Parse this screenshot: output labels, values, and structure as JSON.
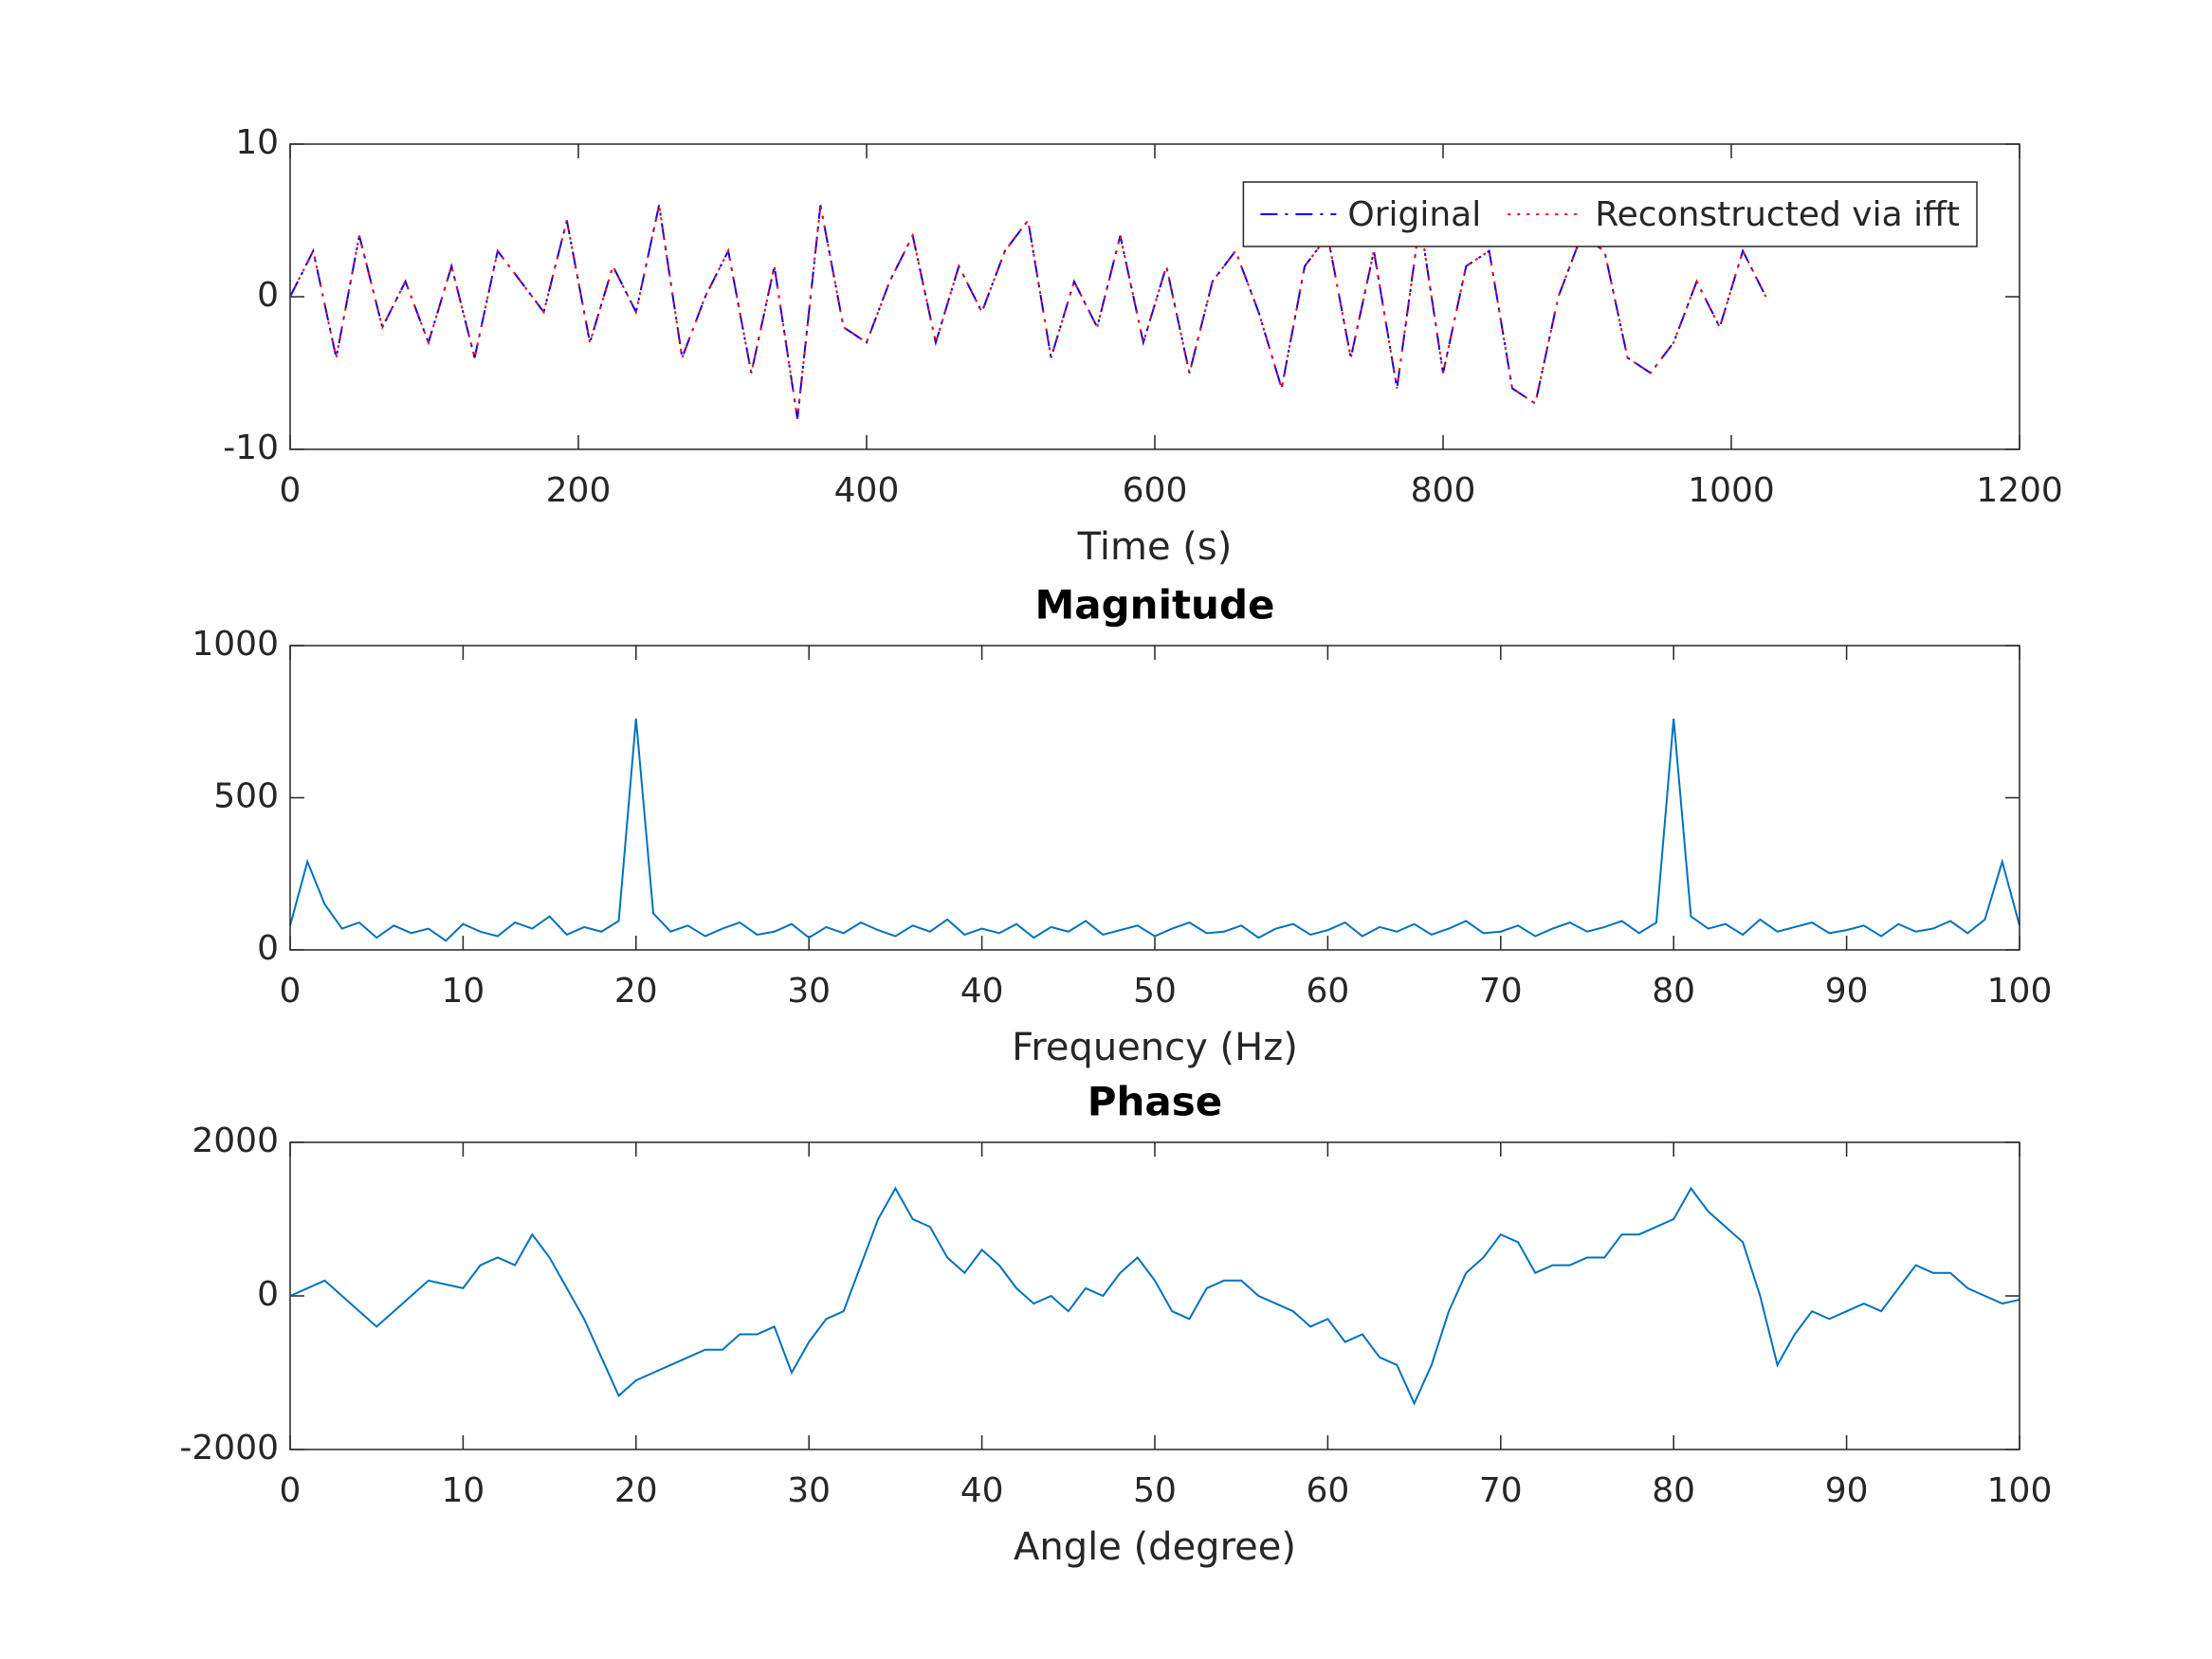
{
  "chart_data": [
    {
      "type": "line",
      "xlabel": "Time (s)",
      "xlim": [
        0,
        1200
      ],
      "ylim": [
        -10,
        10
      ],
      "xticks": [
        0,
        200,
        400,
        600,
        800,
        1000,
        1200
      ],
      "yticks": [
        -10,
        0,
        10
      ],
      "legend": "northeast",
      "x": [
        0,
        16,
        32,
        48,
        64,
        80,
        96,
        112,
        128,
        144,
        160,
        176,
        192,
        208,
        224,
        240,
        256,
        272,
        288,
        304,
        320,
        336,
        352,
        368,
        384,
        400,
        416,
        432,
        448,
        464,
        480,
        496,
        512,
        528,
        544,
        560,
        576,
        592,
        608,
        624,
        640,
        656,
        672,
        688,
        704,
        720,
        736,
        752,
        768,
        784,
        800,
        816,
        832,
        848,
        864,
        880,
        896,
        912,
        928,
        944,
        960,
        976,
        992,
        1008,
        1024
      ],
      "series": [
        {
          "name": "Original",
          "color": "#0000ff",
          "linestyle": "dashdot",
          "values": [
            0,
            3,
            -4,
            4,
            -2,
            1,
            -3,
            2,
            -4,
            3,
            1,
            -1,
            5,
            -3,
            2,
            -1,
            6,
            -4,
            0,
            3,
            -5,
            2,
            -8,
            6,
            -2,
            -3,
            1,
            4,
            -3,
            2,
            -1,
            3,
            5,
            -4,
            1,
            -2,
            4,
            -3,
            2,
            -5,
            1,
            3,
            -1,
            -6,
            2,
            4,
            -4,
            3,
            -6,
            5,
            -5,
            2,
            3,
            -6,
            -7,
            0,
            4,
            3,
            -4,
            -5,
            -3,
            1,
            -2,
            3,
            0
          ]
        },
        {
          "name": "Reconstructed via ifft",
          "color": "#ff0000",
          "linestyle": "dotted",
          "values": [
            0,
            3,
            -4,
            4,
            -2,
            1,
            -3,
            2,
            -4,
            3,
            1,
            -1,
            5,
            -3,
            2,
            -1,
            6,
            -4,
            0,
            3,
            -5,
            2,
            -8,
            6,
            -2,
            -3,
            1,
            4,
            -3,
            2,
            -1,
            3,
            5,
            -4,
            1,
            -2,
            4,
            -3,
            2,
            -5,
            1,
            3,
            -1,
            -6,
            2,
            4,
            -4,
            3,
            -6,
            5,
            -5,
            2,
            3,
            -6,
            -7,
            0,
            4,
            3,
            -4,
            -5,
            -3,
            1,
            -2,
            3,
            0
          ]
        }
      ]
    },
    {
      "type": "line",
      "title": "Magnitude",
      "xlabel": "Frequency (Hz)",
      "xlim": [
        0,
        100
      ],
      "ylim": [
        0,
        1000
      ],
      "xticks": [
        0,
        10,
        20,
        30,
        40,
        50,
        60,
        70,
        80,
        90,
        100
      ],
      "yticks": [
        0,
        500,
        1000
      ],
      "x": [
        0,
        1,
        2,
        3,
        4,
        5,
        6,
        7,
        8,
        9,
        10,
        11,
        12,
        13,
        14,
        15,
        16,
        17,
        18,
        19,
        20,
        21,
        22,
        23,
        24,
        25,
        26,
        27,
        28,
        29,
        30,
        31,
        32,
        33,
        34,
        35,
        36,
        37,
        38,
        39,
        40,
        41,
        42,
        43,
        44,
        45,
        46,
        47,
        48,
        49,
        50,
        51,
        52,
        53,
        54,
        55,
        56,
        57,
        58,
        59,
        60,
        61,
        62,
        63,
        64,
        65,
        66,
        67,
        68,
        69,
        70,
        71,
        72,
        73,
        74,
        75,
        76,
        77,
        78,
        79,
        80,
        81,
        82,
        83,
        84,
        85,
        86,
        87,
        88,
        89,
        90,
        91,
        92,
        93,
        94,
        95,
        96,
        97,
        98,
        99,
        100
      ],
      "series": [
        {
          "name": "Magnitude",
          "color": "#0072bd",
          "values": [
            80,
            290,
            150,
            70,
            90,
            40,
            80,
            55,
            70,
            30,
            85,
            60,
            45,
            90,
            70,
            110,
            50,
            75,
            60,
            95,
            760,
            120,
            60,
            80,
            45,
            70,
            90,
            50,
            60,
            85,
            40,
            75,
            55,
            90,
            65,
            45,
            80,
            60,
            100,
            50,
            70,
            55,
            85,
            40,
            75,
            60,
            95,
            50,
            65,
            80,
            45,
            70,
            90,
            55,
            60,
            80,
            40,
            70,
            85,
            50,
            65,
            90,
            45,
            75,
            60,
            85,
            50,
            70,
            95,
            55,
            60,
            80,
            45,
            70,
            90,
            60,
            75,
            95,
            55,
            90,
            760,
            110,
            70,
            85,
            50,
            100,
            60,
            75,
            90,
            55,
            65,
            80,
            45,
            85,
            60,
            70,
            95,
            55,
            100,
            290,
            80
          ]
        }
      ]
    },
    {
      "type": "line",
      "title": "Phase",
      "xlabel": "Angle (degree)",
      "xlim": [
        0,
        100
      ],
      "ylim": [
        -2000,
        2000
      ],
      "xticks": [
        0,
        10,
        20,
        30,
        40,
        50,
        60,
        70,
        80,
        90,
        100
      ],
      "yticks": [
        -2000,
        0,
        2000
      ],
      "x": [
        0,
        1,
        2,
        3,
        4,
        5,
        6,
        7,
        8,
        9,
        10,
        11,
        12,
        13,
        14,
        15,
        16,
        17,
        18,
        19,
        20,
        21,
        22,
        23,
        24,
        25,
        26,
        27,
        28,
        29,
        30,
        31,
        32,
        33,
        34,
        35,
        36,
        37,
        38,
        39,
        40,
        41,
        42,
        43,
        44,
        45,
        46,
        47,
        48,
        49,
        50,
        51,
        52,
        53,
        54,
        55,
        56,
        57,
        58,
        59,
        60,
        61,
        62,
        63,
        64,
        65,
        66,
        67,
        68,
        69,
        70,
        71,
        72,
        73,
        74,
        75,
        76,
        77,
        78,
        79,
        80,
        81,
        82,
        83,
        84,
        85,
        86,
        87,
        88,
        89,
        90,
        91,
        92,
        93,
        94,
        95,
        96,
        97,
        98,
        99,
        100
      ],
      "series": [
        {
          "name": "Phase",
          "color": "#0072bd",
          "values": [
            0,
            100,
            200,
            0,
            -200,
            -400,
            -200,
            0,
            200,
            150,
            100,
            400,
            500,
            400,
            800,
            500,
            100,
            -300,
            -800,
            -1300,
            -1100,
            -1000,
            -900,
            -800,
            -700,
            -700,
            -500,
            -500,
            -400,
            -1000,
            -600,
            -300,
            -200,
            400,
            1000,
            1400,
            1000,
            900,
            500,
            300,
            600,
            400,
            100,
            -100,
            0,
            -200,
            100,
            0,
            300,
            500,
            200,
            -200,
            -300,
            100,
            200,
            200,
            0,
            -100,
            -200,
            -400,
            -300,
            -600,
            -500,
            -800,
            -900,
            -1400,
            -900,
            -200,
            300,
            500,
            800,
            700,
            300,
            400,
            400,
            500,
            500,
            800,
            800,
            900,
            1000,
            1400,
            1100,
            900,
            700,
            0,
            -900,
            -500,
            -200,
            -300,
            -200,
            -100,
            -200,
            100,
            400,
            300,
            300,
            100,
            0,
            -100,
            -50
          ]
        }
      ]
    }
  ]
}
